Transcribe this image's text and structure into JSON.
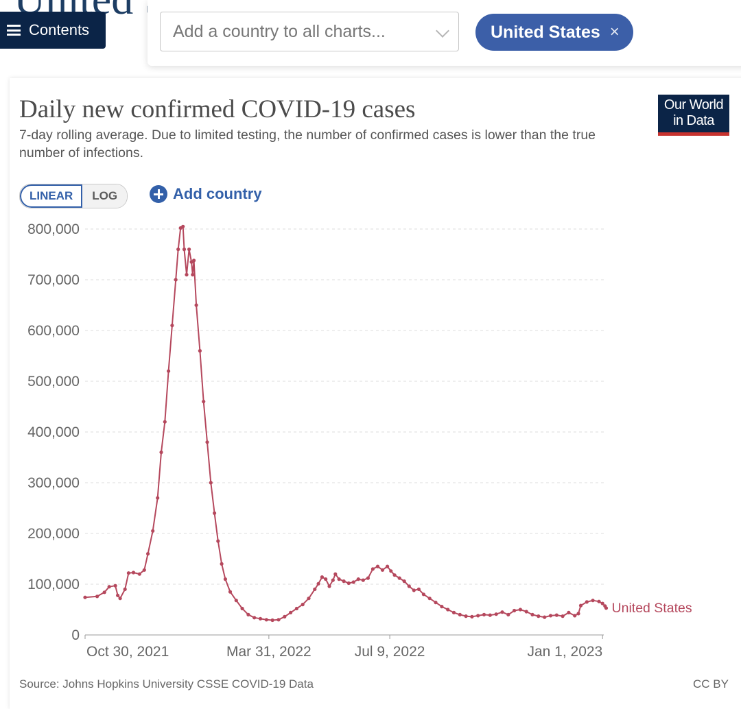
{
  "page": {
    "title_fragment": "United S"
  },
  "nav": {
    "contents_label": "Contents"
  },
  "toolbar": {
    "country_select_placeholder": "Add a country to all charts...",
    "selected_country": "United States",
    "remove_label": "×",
    "chip_color": "#3c5fa8"
  },
  "logo": {
    "line1": "Our World",
    "line2": "in Data"
  },
  "controls": {
    "linear_label": "LINEAR",
    "log_label": "LOG",
    "add_country_label": "Add country"
  },
  "footer": {
    "source": "Source: Johns Hopkins University CSSE COVID-19 Data",
    "license": "CC BY"
  },
  "chart_data": {
    "type": "line",
    "title": "Daily new confirmed COVID-19 cases",
    "subtitle": "7-day rolling average. Due to limited testing, the number of confirmed cases is lower than the true number of infections.",
    "xlabel": "",
    "ylabel": "",
    "ylim": [
      0,
      800000
    ],
    "yticks": [
      0,
      100000,
      200000,
      300000,
      400000,
      500000,
      600000,
      700000,
      800000
    ],
    "ytick_labels": [
      "0",
      "100,000",
      "200,000",
      "300,000",
      "400,000",
      "500,000",
      "600,000",
      "700,000",
      "800,000"
    ],
    "xlim": [
      0,
      429
    ],
    "xticks": [
      0,
      152,
      252,
      428
    ],
    "xtick_labels": [
      "Oct 30, 2021",
      "Mar 31, 2022",
      "Jul 9, 2022",
      "Jan 1, 2023"
    ],
    "grid": "horizontal dashed",
    "series": [
      {
        "name": "United States",
        "color": "#b5485d",
        "points": [
          [
            0,
            74000
          ],
          [
            10,
            76000
          ],
          [
            16,
            84000
          ],
          [
            20,
            95000
          ],
          [
            25,
            97000
          ],
          [
            27,
            78000
          ],
          [
            29,
            72000
          ],
          [
            33,
            90000
          ],
          [
            36,
            122000
          ],
          [
            40,
            123000
          ],
          [
            45,
            120000
          ],
          [
            49,
            128000
          ],
          [
            52,
            160000
          ],
          [
            56,
            205000
          ],
          [
            60,
            270000
          ],
          [
            63,
            360000
          ],
          [
            66,
            420000
          ],
          [
            69,
            520000
          ],
          [
            72,
            610000
          ],
          [
            75,
            700000
          ],
          [
            77,
            760000
          ],
          [
            79,
            802000
          ],
          [
            81,
            805000
          ],
          [
            82,
            760000
          ],
          [
            84,
            710000
          ],
          [
            86,
            760000
          ],
          [
            88,
            735000
          ],
          [
            89,
            710000
          ],
          [
            90,
            738000
          ],
          [
            92,
            650000
          ],
          [
            95,
            560000
          ],
          [
            98,
            460000
          ],
          [
            101,
            380000
          ],
          [
            104,
            300000
          ],
          [
            107,
            240000
          ],
          [
            110,
            185000
          ],
          [
            113,
            140000
          ],
          [
            116,
            110000
          ],
          [
            120,
            85000
          ],
          [
            125,
            68000
          ],
          [
            130,
            52000
          ],
          [
            135,
            40000
          ],
          [
            140,
            34000
          ],
          [
            145,
            32000
          ],
          [
            150,
            30000
          ],
          [
            155,
            29000
          ],
          [
            160,
            30000
          ],
          [
            165,
            36000
          ],
          [
            170,
            44000
          ],
          [
            175,
            52000
          ],
          [
            180,
            60000
          ],
          [
            185,
            72000
          ],
          [
            190,
            90000
          ],
          [
            193,
            101000
          ],
          [
            196,
            114000
          ],
          [
            199,
            110000
          ],
          [
            202,
            96000
          ],
          [
            205,
            108000
          ],
          [
            207,
            120000
          ],
          [
            210,
            110000
          ],
          [
            214,
            106000
          ],
          [
            218,
            102000
          ],
          [
            222,
            104000
          ],
          [
            226,
            110000
          ],
          [
            230,
            108000
          ],
          [
            234,
            112000
          ],
          [
            238,
            130000
          ],
          [
            242,
            135000
          ],
          [
            246,
            128000
          ],
          [
            250,
            135000
          ],
          [
            253,
            126000
          ],
          [
            256,
            118000
          ],
          [
            260,
            112000
          ],
          [
            264,
            106000
          ],
          [
            268,
            96000
          ],
          [
            272,
            88000
          ],
          [
            276,
            90000
          ],
          [
            280,
            80000
          ],
          [
            285,
            72000
          ],
          [
            290,
            64000
          ],
          [
            295,
            56000
          ],
          [
            300,
            50000
          ],
          [
            305,
            44000
          ],
          [
            310,
            40000
          ],
          [
            315,
            37000
          ],
          [
            320,
            36000
          ],
          [
            325,
            38000
          ],
          [
            330,
            40000
          ],
          [
            335,
            39000
          ],
          [
            340,
            41000
          ],
          [
            345,
            45000
          ],
          [
            350,
            40000
          ],
          [
            355,
            48000
          ],
          [
            360,
            50000
          ],
          [
            365,
            46000
          ],
          [
            370,
            40000
          ],
          [
            375,
            37000
          ],
          [
            380,
            35000
          ],
          [
            385,
            38000
          ],
          [
            390,
            39000
          ],
          [
            395,
            37000
          ],
          [
            400,
            44000
          ],
          [
            405,
            38000
          ],
          [
            408,
            42000
          ],
          [
            410,
            58000
          ],
          [
            415,
            65000
          ],
          [
            420,
            68000
          ],
          [
            425,
            66000
          ],
          [
            428,
            62000
          ],
          [
            430,
            57000
          ],
          [
            431,
            53000
          ]
        ]
      }
    ]
  }
}
